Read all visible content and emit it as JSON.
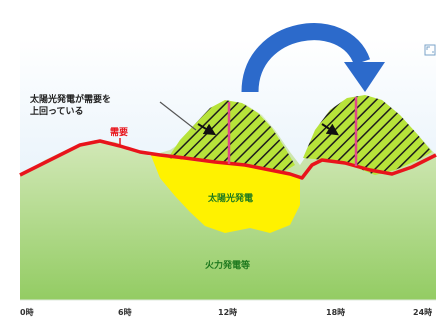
{
  "annotation": {
    "text_line1": "太陽光発電が需要を",
    "text_line2": "上回っている"
  },
  "labels": {
    "demand": "需要",
    "solar": "太陽光発電",
    "thermal": "火力発電等"
  },
  "x_ticks": [
    "0時",
    "6時",
    "12時",
    "18時",
    "24時"
  ],
  "colors": {
    "demand_line": "#e8141b",
    "solar_fill": "#fff200",
    "surplus_fill": "#b3e33b",
    "thermal_top": "#dfeccb",
    "thermal_bottom": "#8fca5c",
    "sky": "#dcecf8",
    "marker": "#e0488a",
    "arrow": "#2f6fd0"
  },
  "icons": {
    "arrow": "curved-arrow-icon",
    "expand": "expand-icon"
  }
}
